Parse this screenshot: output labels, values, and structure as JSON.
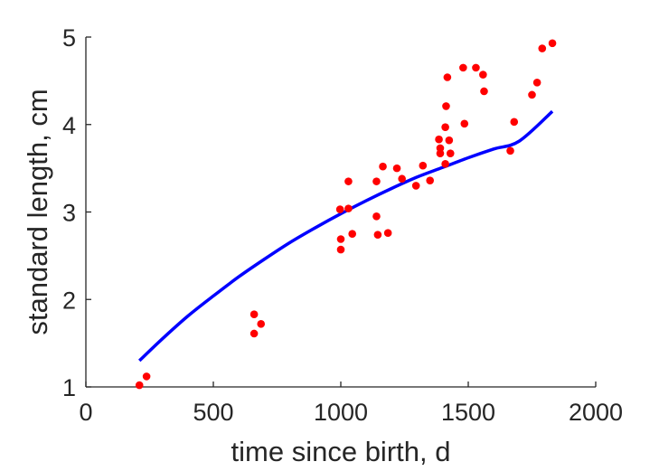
{
  "chart_data": {
    "type": "scatter",
    "xlabel": "time since birth, d",
    "ylabel": "standard length, cm",
    "xlim": [
      0,
      2000
    ],
    "ylim": [
      1,
      5
    ],
    "xticks": [
      0,
      500,
      1000,
      1500,
      2000
    ],
    "yticks": [
      1,
      2,
      3,
      4,
      5
    ],
    "grid": false,
    "box": false,
    "colors": {
      "points": "#ff0000",
      "fit": "#0000ff",
      "axes": "#262626"
    },
    "series": [
      {
        "type": "scatter",
        "points": [
          {
            "x": 210,
            "y": 1.02
          },
          {
            "x": 238,
            "y": 1.12
          },
          {
            "x": 660,
            "y": 1.83
          },
          {
            "x": 660,
            "y": 1.61
          },
          {
            "x": 687,
            "y": 1.72
          },
          {
            "x": 997,
            "y": 3.03
          },
          {
            "x": 1000,
            "y": 2.69
          },
          {
            "x": 1000,
            "y": 2.57
          },
          {
            "x": 1030,
            "y": 3.35
          },
          {
            "x": 1030,
            "y": 3.04
          },
          {
            "x": 1045,
            "y": 2.75
          },
          {
            "x": 1140,
            "y": 3.35
          },
          {
            "x": 1140,
            "y": 2.95
          },
          {
            "x": 1145,
            "y": 2.74
          },
          {
            "x": 1165,
            "y": 3.52
          },
          {
            "x": 1185,
            "y": 2.76
          },
          {
            "x": 1220,
            "y": 3.5
          },
          {
            "x": 1240,
            "y": 3.38
          },
          {
            "x": 1295,
            "y": 3.3
          },
          {
            "x": 1322,
            "y": 3.53
          },
          {
            "x": 1350,
            "y": 3.36
          },
          {
            "x": 1385,
            "y": 3.83
          },
          {
            "x": 1390,
            "y": 3.73
          },
          {
            "x": 1390,
            "y": 3.67
          },
          {
            "x": 1410,
            "y": 3.97
          },
          {
            "x": 1410,
            "y": 3.55
          },
          {
            "x": 1413,
            "y": 4.21
          },
          {
            "x": 1418,
            "y": 4.54
          },
          {
            "x": 1425,
            "y": 3.82
          },
          {
            "x": 1430,
            "y": 3.67
          },
          {
            "x": 1480,
            "y": 4.65
          },
          {
            "x": 1485,
            "y": 4.01
          },
          {
            "x": 1530,
            "y": 4.65
          },
          {
            "x": 1558,
            "y": 4.57
          },
          {
            "x": 1562,
            "y": 4.38
          },
          {
            "x": 1665,
            "y": 3.7
          },
          {
            "x": 1680,
            "y": 4.03
          },
          {
            "x": 1750,
            "y": 4.34
          },
          {
            "x": 1770,
            "y": 4.48
          },
          {
            "x": 1790,
            "y": 4.87
          },
          {
            "x": 1830,
            "y": 4.93
          }
        ]
      },
      {
        "type": "line",
        "x": [
          210,
          300,
          400,
          500,
          600,
          700,
          800,
          900,
          1000,
          1100,
          1200,
          1300,
          1400,
          1500,
          1600,
          1700,
          1830
        ],
        "values": [
          1.3,
          1.55,
          1.81,
          2.04,
          2.26,
          2.46,
          2.65,
          2.82,
          2.98,
          3.13,
          3.27,
          3.4,
          3.51,
          3.62,
          3.72,
          3.81,
          4.15
        ]
      }
    ]
  }
}
